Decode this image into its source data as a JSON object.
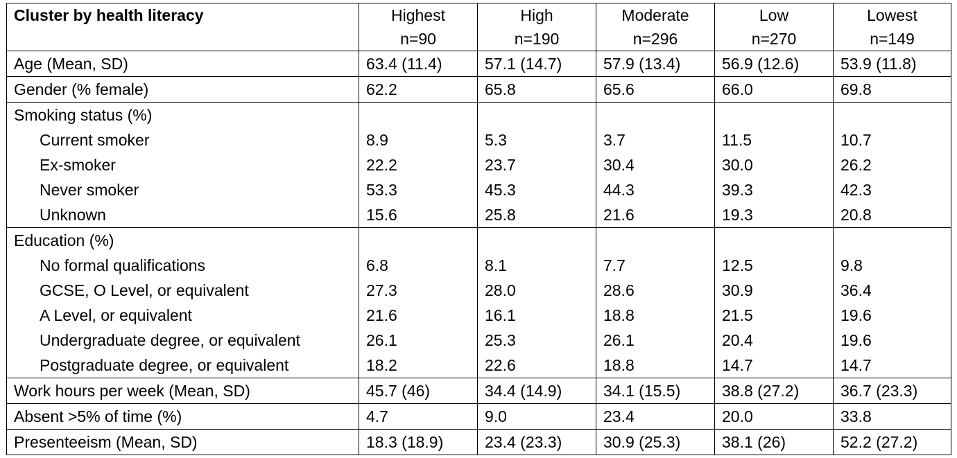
{
  "header": {
    "title": "Cluster by health literacy",
    "columns": [
      {
        "label": "Highest",
        "n": "n=90"
      },
      {
        "label": "High",
        "n": "n=190"
      },
      {
        "label": "Moderate",
        "n": "n=296"
      },
      {
        "label": "Low",
        "n": "n=270"
      },
      {
        "label": "Lowest",
        "n": "n=149"
      }
    ]
  },
  "rows": {
    "age": {
      "label": "Age (Mean, SD)",
      "values": [
        "63.4 (11.4)",
        "57.1 (14.7)",
        "57.9 (13.4)",
        "56.9 (12.6)",
        "53.9 (11.8)"
      ]
    },
    "gender": {
      "label": "Gender (% female)",
      "values": [
        "62.2",
        "65.8",
        "65.6",
        "66.0",
        "69.8"
      ]
    },
    "smoking": {
      "label": "Smoking status (%)",
      "items": [
        {
          "label": "Current smoker",
          "values": [
            "8.9",
            "5.3",
            "3.7",
            "11.5",
            "10.7"
          ]
        },
        {
          "label": "Ex-smoker",
          "values": [
            "22.2",
            "23.7",
            "30.4",
            "30.0",
            "26.2"
          ]
        },
        {
          "label": "Never smoker",
          "values": [
            "53.3",
            "45.3",
            "44.3",
            "39.3",
            "42.3"
          ]
        },
        {
          "label": "Unknown",
          "values": [
            "15.6",
            "25.8",
            "21.6",
            "19.3",
            "20.8"
          ]
        }
      ]
    },
    "education": {
      "label": "Education (%)",
      "items": [
        {
          "label": "No formal qualifications",
          "values": [
            "6.8",
            "8.1",
            "7.7",
            "12.5",
            "9.8"
          ]
        },
        {
          "label": "GCSE, O Level, or equivalent",
          "values": [
            "27.3",
            "28.0",
            "28.6",
            "30.9",
            "36.4"
          ]
        },
        {
          "label": "A Level, or equivalent",
          "values": [
            "21.6",
            "16.1",
            "18.8",
            "21.5",
            "19.6"
          ]
        },
        {
          "label": "Undergraduate degree, or equivalent",
          "values": [
            "26.1",
            "25.3",
            "26.1",
            "20.4",
            "19.6"
          ]
        },
        {
          "label": "Postgraduate degree, or equivalent",
          "values": [
            "18.2",
            "22.6",
            "18.8",
            "14.7",
            "14.7"
          ]
        }
      ]
    },
    "work_hours": {
      "label": "Work hours per week (Mean, SD)",
      "values": [
        "45.7 (46)",
        "34.4 (14.9)",
        "34.1 (15.5)",
        "38.8 (27.2)",
        "36.7 (23.3)"
      ]
    },
    "absent": {
      "label": "Absent >5% of time (%)",
      "values": [
        "4.7",
        "9.0",
        "23.4",
        "20.0",
        "33.8"
      ]
    },
    "presenteeism": {
      "label": "Presenteeism (Mean, SD)",
      "values": [
        "18.3 (18.9)",
        "23.4 (23.3)",
        "30.9 (25.3)",
        "38.1 (26)",
        "52.2 (27.2)"
      ]
    }
  }
}
